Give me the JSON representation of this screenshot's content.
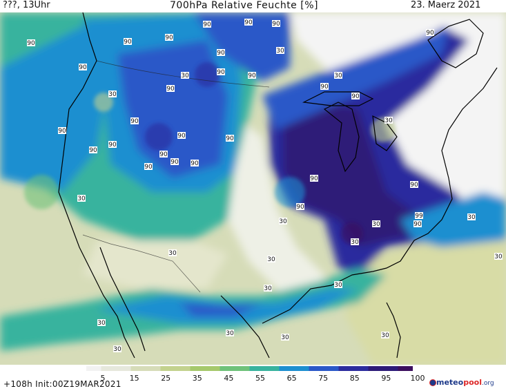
{
  "header": {
    "left": "???, 13Uhr",
    "title": "700hPa Relative Feuchte [%]",
    "date": "23. Maerz 2021"
  },
  "footer": {
    "run": "+108h  Init:00Z19MAR2021",
    "logo_text_a": "meteo",
    "logo_text_b": "pool",
    "logo_text_c": ".org"
  },
  "legend": {
    "ticks": [
      "5",
      "15",
      "25",
      "35",
      "45",
      "55",
      "65",
      "75",
      "85",
      "95",
      "100"
    ],
    "colors": [
      "#f2f2f2",
      "#e6e8dc",
      "#d6dcb8",
      "#c3d28e",
      "#a6c96c",
      "#6fc27a",
      "#38b39e",
      "#1d8fd0",
      "#2a58c8",
      "#2c2c9e",
      "#2d1a78",
      "#3b0e5e"
    ]
  },
  "map_labels": [
    {
      "text": "90"
    },
    {
      "text": "90"
    },
    {
      "text": "90"
    },
    {
      "text": "90"
    },
    {
      "text": "90"
    },
    {
      "text": "90"
    },
    {
      "text": "90"
    },
    {
      "text": "90"
    },
    {
      "text": "90"
    },
    {
      "text": "90"
    },
    {
      "text": "90"
    },
    {
      "text": "90"
    },
    {
      "text": "90"
    },
    {
      "text": "90"
    },
    {
      "text": "90"
    },
    {
      "text": "90"
    },
    {
      "text": "90"
    },
    {
      "text": "90"
    },
    {
      "text": "90"
    },
    {
      "text": "90"
    },
    {
      "text": "90"
    },
    {
      "text": "90"
    },
    {
      "text": "90"
    },
    {
      "text": "90"
    },
    {
      "text": "90"
    },
    {
      "text": "99"
    },
    {
      "text": "90"
    },
    {
      "text": "90"
    },
    {
      "text": "90"
    },
    {
      "text": "30"
    },
    {
      "text": "30"
    },
    {
      "text": "30"
    },
    {
      "text": "30"
    },
    {
      "text": "30"
    },
    {
      "text": "30"
    },
    {
      "text": "30"
    },
    {
      "text": "30"
    },
    {
      "text": "30"
    },
    {
      "text": "30"
    },
    {
      "text": "30"
    },
    {
      "text": "30"
    },
    {
      "text": "30"
    },
    {
      "text": "30"
    },
    {
      "text": "30"
    },
    {
      "text": "30"
    },
    {
      "text": "30"
    },
    {
      "text": "30"
    },
    {
      "text": "30"
    },
    {
      "text": "30"
    }
  ]
}
